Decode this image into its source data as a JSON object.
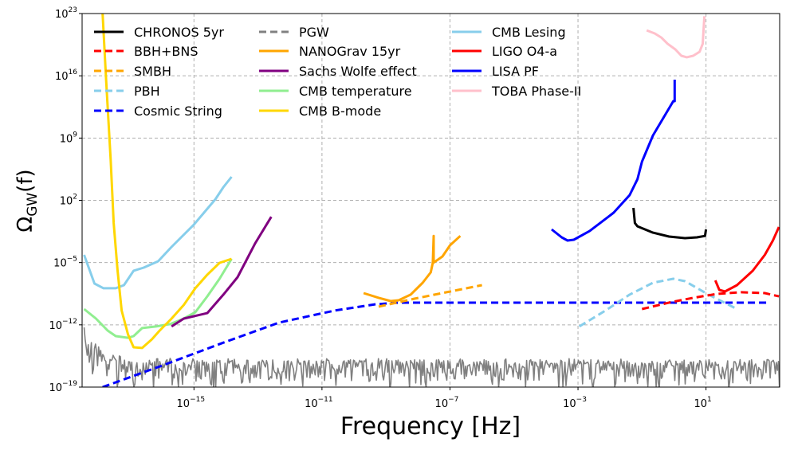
{
  "chart_data": {
    "type": "line",
    "xlabel": "Frequency [Hz]",
    "ylabel_main": "Ω",
    "ylabel_sub": "GW",
    "ylabel_arg": "(f)",
    "xscale": "log",
    "yscale": "log",
    "xlim": [
      3.2e-19,
      2000.0
    ],
    "ylim": [
      1e-19,
      1e+23
    ],
    "grid": true,
    "legend_placement": "top-left",
    "xticks": [
      {
        "base": "10",
        "exp": "−15",
        "v": 1e-15
      },
      {
        "base": "10",
        "exp": "−11",
        "v": 1e-11
      },
      {
        "base": "10",
        "exp": "−7",
        "v": 1e-07
      },
      {
        "base": "10",
        "exp": "−3",
        "v": 0.001
      },
      {
        "base": "10",
        "exp": "1",
        "v": 10.0
      }
    ],
    "yticks": [
      {
        "base": "10",
        "exp": "23",
        "v": 1e+23
      },
      {
        "base": "10",
        "exp": "16",
        "v": 1e+16
      },
      {
        "base": "10",
        "exp": "9",
        "v": 1000000000.0
      },
      {
        "base": "10",
        "exp": "2",
        "v": 100.0
      },
      {
        "base": "10",
        "exp": "−5",
        "v": 1e-05
      },
      {
        "base": "10",
        "exp": "−12",
        "v": 1e-12
      },
      {
        "base": "10",
        "exp": "−19",
        "v": 1e-19
      }
    ],
    "series": [
      {
        "name": "PGW",
        "color": "#808080",
        "style": "dashed",
        "noise_band": true,
        "points": [
          [
            3.7e-19,
            6.5e-13
          ],
          [
            1.5e-18,
            1.3e-15
          ],
          [
            8.7e-18,
            1.7e-16
          ],
          [
            1900.0,
            1.7e-16
          ]
        ]
      },
      {
        "name": "Cosmic String",
        "color": "#0000ff",
        "style": "dashed",
        "points": [
          [
            1.4e-18,
            1e-19
          ],
          [
            8.5e-17,
            2.1e-17
          ],
          [
            8.3e-15,
            1e-14
          ],
          [
            4.6e-13,
            1.8e-12
          ],
          [
            2.5e-11,
            4e-11
          ],
          [
            4.5e-10,
            2e-10
          ],
          [
            2.5e-09,
            3.1e-10
          ],
          [
            1.4e-08,
            3.1e-10
          ],
          [
            1000.0,
            3.1e-10
          ]
        ]
      },
      {
        "name": "CMB Lesing",
        "color": "#87ceeb",
        "style": "solid",
        "points": [
          [
            3.7e-19,
            7.4e-05
          ],
          [
            7.8e-19,
            4.4e-08
          ],
          [
            1.5e-18,
            1.3e-08
          ],
          [
            3.6e-18,
            1.3e-08
          ],
          [
            6.5e-18,
            2.9e-08
          ],
          [
            1.3e-17,
            1.2e-06
          ],
          [
            2.7e-17,
            2.7e-06
          ],
          [
            7.6e-17,
            1.4e-05
          ],
          [
            2e-16,
            0.00058
          ],
          [
            1e-15,
            0.19
          ],
          [
            4.7e-15,
            135
          ],
          [
            8.3e-15,
            3000.0
          ],
          [
            1.5e-14,
            44000.0
          ]
        ]
      },
      {
        "name": "CMB temperature",
        "color": "#90ee90",
        "style": "solid",
        "points": [
          [
            3.7e-19,
            6e-11
          ],
          [
            8.7e-19,
            5e-12
          ],
          [
            2e-18,
            2.3e-13
          ],
          [
            3.6e-18,
            5.4e-14
          ],
          [
            8.7e-18,
            3.5e-14
          ],
          [
            1.3e-17,
            5.4e-14
          ],
          [
            2.4e-17,
            4.3e-13
          ],
          [
            6.5e-17,
            6.5e-13
          ],
          [
            1.8e-16,
            1.2e-12
          ],
          [
            4.8e-16,
            5e-12
          ],
          [
            1.1e-15,
            2.6e-11
          ],
          [
            2.6e-15,
            1.6e-09
          ],
          [
            6.3e-15,
            1.5e-07
          ],
          [
            1.5e-14,
            2.6e-05
          ]
        ]
      },
      {
        "name": "CMB B-mode",
        "color": "#ffd700",
        "style": "solid",
        "points": [
          [
            1.4e-18,
            1e+23
          ],
          [
            1.8e-18,
            3700000000000000.0
          ],
          [
            2.5e-18,
            4100000.0
          ],
          [
            3.1e-18,
            0.28
          ],
          [
            4.1e-18,
            1.2e-06
          ],
          [
            5.5e-18,
            4e-11
          ],
          [
            8.7e-18,
            8.1e-14
          ],
          [
            1.3e-17,
            3e-15
          ],
          [
            2.4e-17,
            2.5e-15
          ],
          [
            4.8e-17,
            2.3e-14
          ],
          [
            8.5e-17,
            2.3e-13
          ],
          [
            2e-16,
            5e-12
          ],
          [
            4.8e-16,
            1.7e-10
          ],
          [
            1.1e-15,
            1.3e-08
          ],
          [
            2.6e-15,
            4.3e-07
          ],
          [
            6.3e-15,
            9.3e-06
          ],
          [
            1.5e-14,
            2.6e-05
          ]
        ]
      },
      {
        "name": "Sachs Wolfe effect",
        "color": "#800080",
        "style": "solid",
        "points": [
          [
            2e-16,
            6.5e-13
          ],
          [
            4.8e-16,
            5e-12
          ],
          [
            2.6e-15,
            2.1e-11
          ],
          [
            8.3e-15,
            2.5e-09
          ],
          [
            2.3e-14,
            2.3e-07
          ],
          [
            8.3e-14,
            0.0016
          ],
          [
            2.6e-13,
            1.4
          ]
        ]
      },
      {
        "name": "SMBH",
        "color": "#ffa500",
        "style": "dashed",
        "points": [
          [
            5.9e-10,
            1.1e-10
          ],
          [
            7.8e-09,
            8.7e-10
          ],
          [
            7.8e-08,
            4.6e-09
          ],
          [
            1e-06,
            2.9e-08
          ]
        ]
      },
      {
        "name": "NANOGrav 15yr",
        "color": "#ffa500",
        "style": "solid",
        "points": [
          [
            2e-10,
            3.7e-09
          ],
          [
            5.9e-10,
            1.1e-09
          ],
          [
            1.4e-09,
            4.7e-10
          ],
          [
            2.5e-09,
            5.8e-10
          ],
          [
            5.9e-09,
            2.5e-09
          ],
          [
            1.4e-08,
            5.4e-08
          ],
          [
            2.5e-08,
            7.9e-07
          ],
          [
            2.9e-08,
            9.3e-06
          ],
          [
            3.1e-08,
            0.01
          ],
          [
            3.1e-08,
            1e-05
          ],
          [
            5.8e-08,
            4.9e-05
          ],
          [
            1e-07,
            0.00087
          ],
          [
            2.1e-07,
            0.01
          ]
        ]
      },
      {
        "name": "PBH",
        "color": "#87ceeb",
        "style": "dashed",
        "points": [
          [
            0.0011,
            6.5e-13
          ],
          [
            0.0072,
            4e-11
          ],
          [
            0.041,
            2.5e-09
          ],
          [
            0.22,
            5.4e-08
          ],
          [
            0.95,
            1.5e-07
          ],
          [
            2.2,
            8.1e-08
          ],
          [
            12,
            2.5e-09
          ],
          [
            93,
            6e-11
          ]
        ]
      },
      {
        "name": "BBH+BNS",
        "color": "#ff0000",
        "style": "dashed",
        "points": [
          [
            0.1,
            6e-11
          ],
          [
            0.7,
            3.2e-10
          ],
          [
            4,
            1.1e-09
          ],
          [
            22,
            3e-09
          ],
          [
            123,
            4.6e-09
          ],
          [
            690,
            3.7e-09
          ],
          [
            1900,
            1.6e-09
          ]
        ]
      },
      {
        "name": "LIGO O4-a",
        "color": "#ff0000",
        "style": "solid",
        "points": [
          [
            19.5,
            1e-07
          ],
          [
            26,
            8.5e-09
          ],
          [
            39,
            5.6e-09
          ],
          [
            93,
            2.9e-08
          ],
          [
            290,
            1.2e-06
          ],
          [
            690,
            7.4e-05
          ],
          [
            1230,
            0.003
          ],
          [
            1900,
            0.1
          ]
        ]
      },
      {
        "name": "LISA PF",
        "color": "#0000ff",
        "style": "solid",
        "points": [
          [
            0.00015,
            0.054
          ],
          [
            0.00031,
            0.0069
          ],
          [
            0.00047,
            0.003
          ],
          [
            0.00074,
            0.0037
          ],
          [
            0.0023,
            0.035
          ],
          [
            0.013,
            4.1
          ],
          [
            0.041,
            380.0
          ],
          [
            0.072,
            23000.0
          ],
          [
            0.1,
            2200000.0
          ],
          [
            0.22,
            2000000000.0
          ],
          [
            0.95,
            14000000000000.0
          ],
          [
            1.05,
            14000000000000.0
          ],
          [
            1.05,
            3700000000000000.0
          ]
        ]
      },
      {
        "name": "CHRONOS 5yr",
        "color": "#000000",
        "style": "solid",
        "points": [
          [
            0.054,
            14
          ],
          [
            0.06,
            0.28
          ],
          [
            0.072,
            0.12
          ],
          [
            0.22,
            0.023
          ],
          [
            0.7,
            0.0085
          ],
          [
            2.2,
            0.0056
          ],
          [
            5.2,
            0.0069
          ],
          [
            9.3,
            0.01
          ],
          [
            10,
            0.054
          ]
        ]
      },
      {
        "name": "TOBA Phase-II",
        "color": "#ffc0cb",
        "style": "solid",
        "points": [
          [
            0.14,
            1.3e+21
          ],
          [
            0.25,
            5.8e+20
          ],
          [
            0.4,
            2e+20
          ],
          [
            0.63,
            4e+19
          ],
          [
            1.1,
            9.3e+18
          ],
          [
            1.7,
            1.8e+18
          ],
          [
            2.5,
            1.2e+18
          ],
          [
            4,
            1.8e+18
          ],
          [
            6.3,
            5e+18
          ],
          [
            7.9,
            4e+19
          ],
          [
            8.9,
            5e+22
          ]
        ]
      }
    ],
    "legend": [
      [
        "CHRONOS 5yr",
        "BBH+BNS",
        "SMBH",
        "PBH",
        "Cosmic String"
      ],
      [
        "PGW",
        "NANOGrav 15yr",
        "Sachs Wolfe effect",
        "CMB temperature",
        "CMB B-mode"
      ],
      [
        "CMB Lesing",
        "LIGO O4-a",
        "LISA PF",
        "TOBA Phase-II"
      ]
    ]
  }
}
